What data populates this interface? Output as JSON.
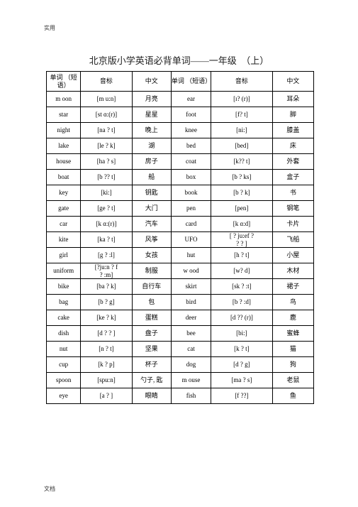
{
  "header_label": "实用",
  "footer_label": "文档",
  "title": "北京版小学英语必背单词——一年级　（上）",
  "columns": [
    "单词\n（短语）",
    "音标",
    "中文",
    "单词\n（短语）",
    "音标",
    "中文"
  ],
  "rows": [
    [
      "m oon",
      "[m u:n]",
      "月亮",
      "ear",
      "[ɪ?  (r)]",
      "耳朵"
    ],
    [
      "star",
      "[st ɑ:(r)]",
      "星星",
      "foot",
      "[f? t]",
      "脚"
    ],
    [
      "night",
      "[na ? t]",
      "晚上",
      "knee",
      "[ni:]",
      "膝盖"
    ],
    [
      "lake",
      "[le ? k]",
      "湖",
      "bed",
      "[bed]",
      "床"
    ],
    [
      "house",
      "[ha ? s]",
      "房子",
      "coat",
      "[k?? t]",
      "外套"
    ],
    [
      "boat",
      "[b ?? t]",
      "船",
      "box",
      "[b ? ks]",
      "盒子"
    ],
    [
      "key",
      "[ki:]",
      "钥匙",
      "book",
      "[b ? k]",
      "书"
    ],
    [
      "gate",
      "[ge ? t]",
      "大门",
      "pen",
      "[pen]",
      "钢笔"
    ],
    [
      "car",
      "[k ɑ:(r)]",
      "汽车",
      "card",
      "[k ɑ:d]",
      "卡片"
    ],
    [
      "kite",
      "[ka ? t]",
      "风筝",
      "UFO",
      "[ ? ju:ef   ?\n? ? ]",
      "飞船"
    ],
    [
      "girl",
      "[g ? :l]",
      "女孩",
      "hut",
      "[h ? t]",
      "小屋"
    ],
    [
      "uniform",
      "[?ju:n ? f\n? :m]",
      "制服",
      "w ood",
      "[w? d]",
      "木材"
    ],
    [
      "bike",
      "[ba ? k]",
      "自行车",
      "skirt",
      "[sk ? :t]",
      "裙子"
    ],
    [
      "bag",
      "[b ? g]",
      "包",
      "bird",
      "[b ? :d]",
      "鸟"
    ],
    [
      "cake",
      "[ke ? k]",
      "蛋糕",
      "deer",
      "[d ??  (r)]",
      "鹿"
    ],
    [
      "dish",
      "[d ? ? ]",
      "盘子",
      "bee",
      "[bi:]",
      "蜜蜂"
    ],
    [
      "nut",
      "[n ? t]",
      "坚果",
      "cat",
      "[k ? t]",
      "猫"
    ],
    [
      "cup",
      "[k ? p]",
      "杯子",
      "dog",
      "[d ? g]",
      "狗"
    ],
    [
      "spoon",
      "[spu:n]",
      "勺子, 匙",
      "m ouse",
      "[ma ? s]",
      "老鼠"
    ],
    [
      "eye",
      "[a ? ]",
      "眼睛",
      "fish",
      "[f ??]",
      "鱼"
    ]
  ]
}
